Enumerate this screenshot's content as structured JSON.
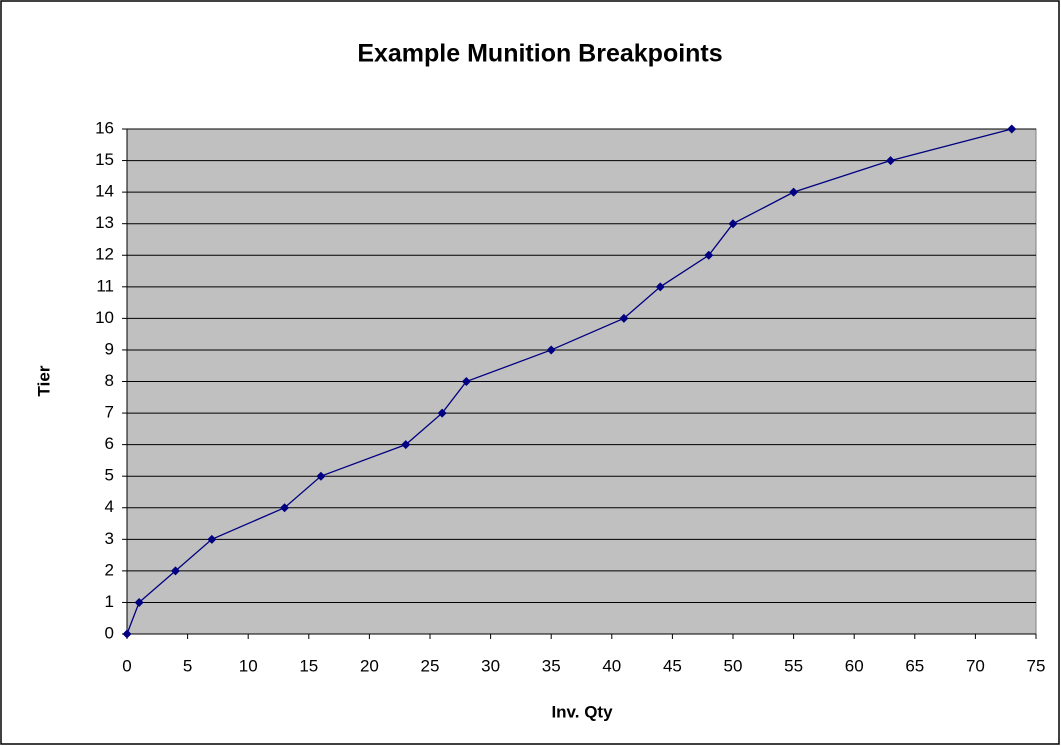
{
  "chart_data": {
    "type": "line",
    "title": "Example Munition Breakpoints",
    "x_label": "Inv. Qty",
    "y_label": "Tier",
    "x": [
      0,
      1,
      4,
      7,
      13,
      16,
      23,
      26,
      28,
      35,
      41,
      44,
      48,
      50,
      55,
      63,
      73
    ],
    "values": [
      0,
      1,
      2,
      3,
      4,
      5,
      6,
      7,
      8,
      9,
      10,
      11,
      12,
      13,
      14,
      15,
      16
    ],
    "color": "#000080",
    "plot_background": "#c0c0c0",
    "xlim": [
      0,
      75
    ],
    "xticks": [
      0,
      5,
      10,
      15,
      20,
      25,
      30,
      35,
      40,
      45,
      50,
      55,
      60,
      65,
      70,
      75
    ],
    "ylim": [
      0,
      16
    ],
    "yticks": [
      0,
      1,
      2,
      3,
      4,
      5,
      6,
      7,
      8,
      9,
      10,
      11,
      12,
      13,
      14,
      15,
      16
    ],
    "grid": true
  }
}
